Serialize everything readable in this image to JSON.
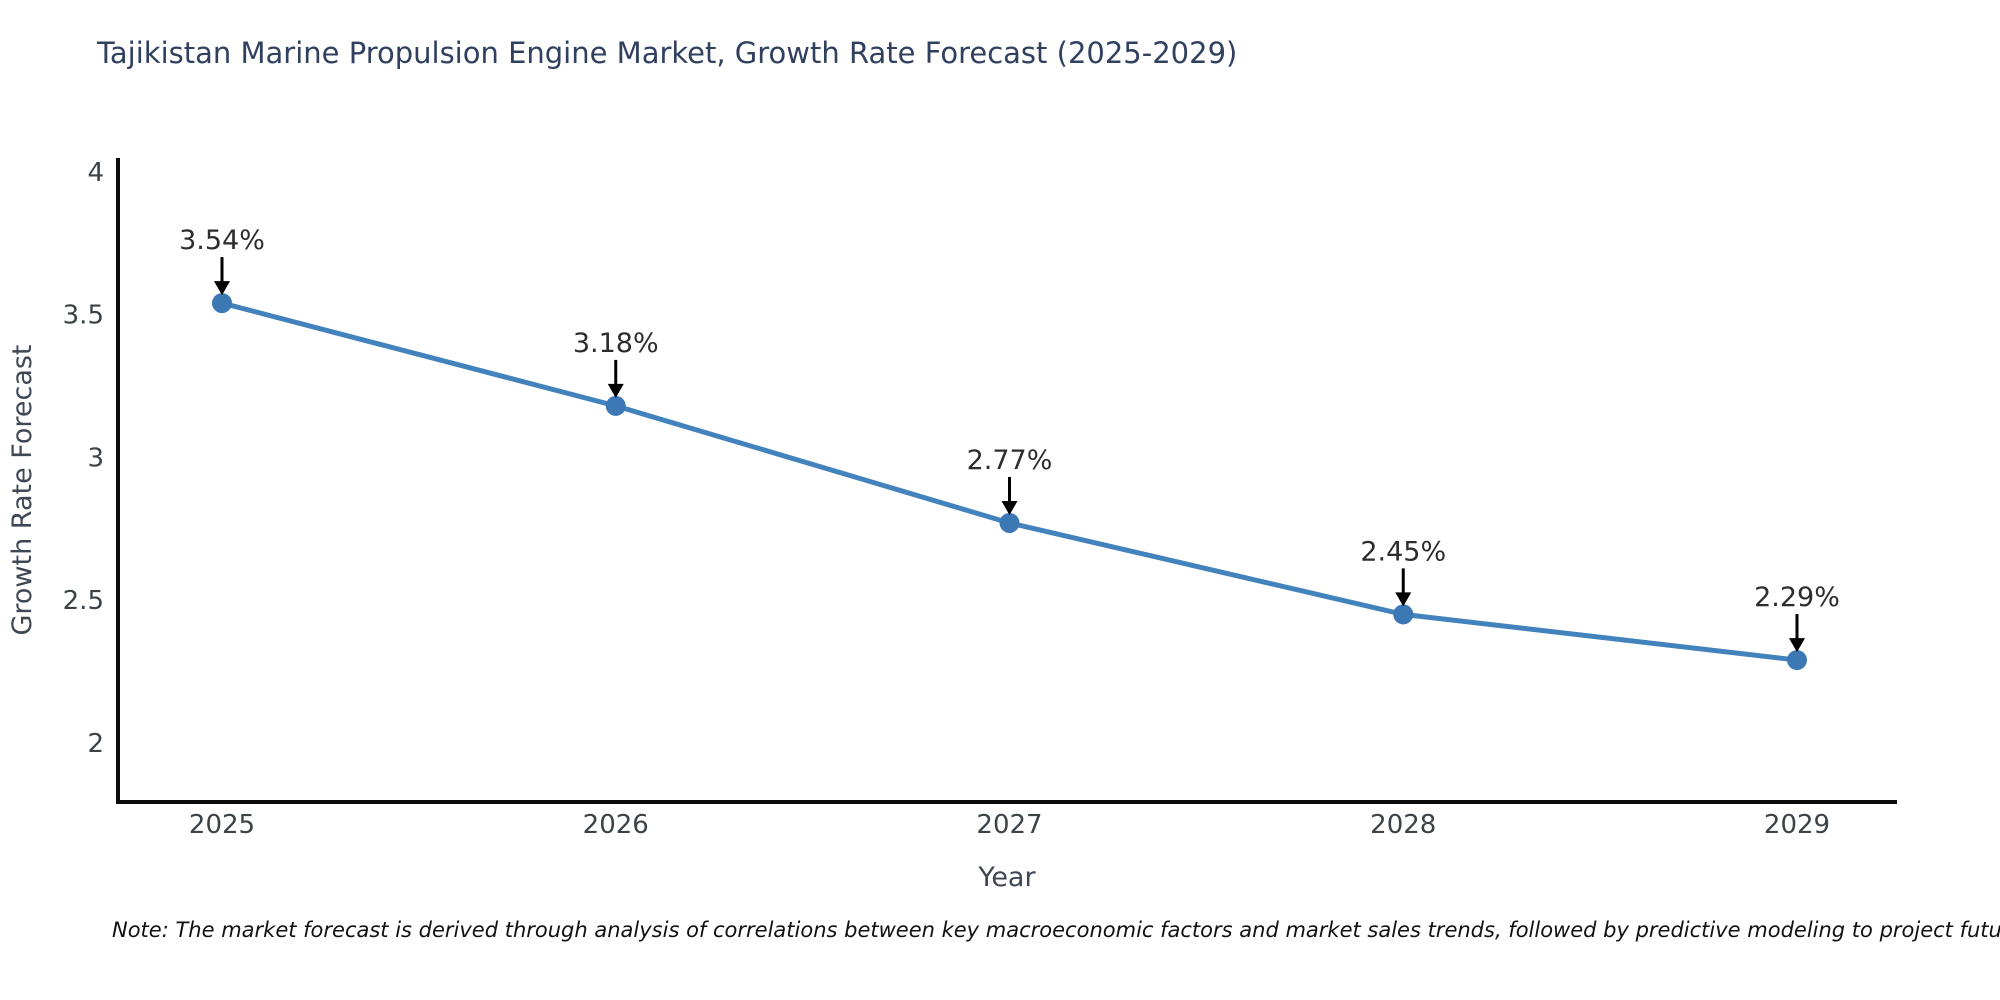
{
  "title": "Tajikistan Marine Propulsion Engine Market, Growth Rate Forecast (2025-2029)",
  "note": "Note: The market forecast is derived through analysis of correlations between key macroeconomic factors and market sales trends, followed by predictive modeling to project future sales",
  "chart_data": {
    "type": "line",
    "title": "Tajikistan Marine Propulsion Engine Market, Growth Rate Forecast (2025-2029)",
    "xlabel": "Year",
    "ylabel": "Growth Rate Forecast",
    "categories": [
      "2025",
      "2026",
      "2027",
      "2028",
      "2029"
    ],
    "series": [
      {
        "name": "Growth Rate Forecast",
        "values": [
          3.54,
          3.18,
          2.77,
          2.45,
          2.29
        ]
      }
    ],
    "point_labels": [
      "3.54%",
      "3.18%",
      "2.77%",
      "2.45%",
      "2.29%"
    ],
    "ytick_labels": [
      "4",
      "3.5",
      "3",
      "2.5",
      "2"
    ],
    "yticks": [
      4,
      3.5,
      3,
      2.5,
      2
    ],
    "ylim": [
      1.793,
      4.048
    ],
    "grid": false,
    "legend_position": "none",
    "colors": {
      "line": "#4383bd",
      "marker": "#3c78b4",
      "axis": "#0b0b0b",
      "annotation_arrow": "#000000",
      "annotation_text": "#2d2d2d",
      "tick_label": "#3b4248",
      "title": "#31405f",
      "axis_label": "#3f4754",
      "note": "#111111",
      "background": "#ffffff"
    }
  }
}
